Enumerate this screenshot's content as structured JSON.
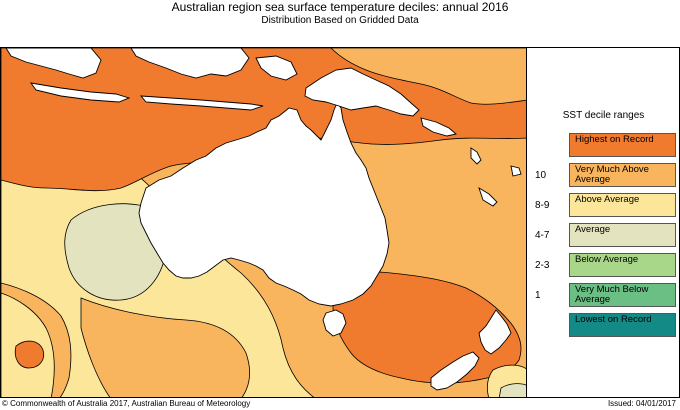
{
  "header": {
    "title": "Australian region sea surface temperature deciles:  annual 2016",
    "subtitle": "Distribution Based on Gridded Data"
  },
  "legend": {
    "title": "SST decile ranges",
    "items": [
      {
        "range": "",
        "label": "Highest on Record",
        "color": "#f07a2e"
      },
      {
        "range": "10",
        "label": "Very Much Above Average",
        "color": "#f9b45e"
      },
      {
        "range": "8-9",
        "label": "Above Average",
        "color": "#fbe69a"
      },
      {
        "range": "4-7",
        "label": "Average",
        "color": "#e3e3c0"
      },
      {
        "range": "2-3",
        "label": "Below Average",
        "color": "#a9d78a"
      },
      {
        "range": "1",
        "label": "Very Much Below Average",
        "color": "#6bbe84"
      },
      {
        "range": "",
        "label": "Lowest on Record",
        "color": "#138a86"
      }
    ]
  },
  "map": {
    "colors": {
      "highest": "#f07a2e",
      "very_much_above": "#f9b45e",
      "above": "#fbe69a",
      "average": "#e3e3c0",
      "land": "#ffffff",
      "outline": "#000000"
    }
  },
  "footer": {
    "copyright": "© Commonwealth of Australia 2017, Australian Bureau of Meteorology",
    "issued": "Issued: 04/01/2017"
  }
}
